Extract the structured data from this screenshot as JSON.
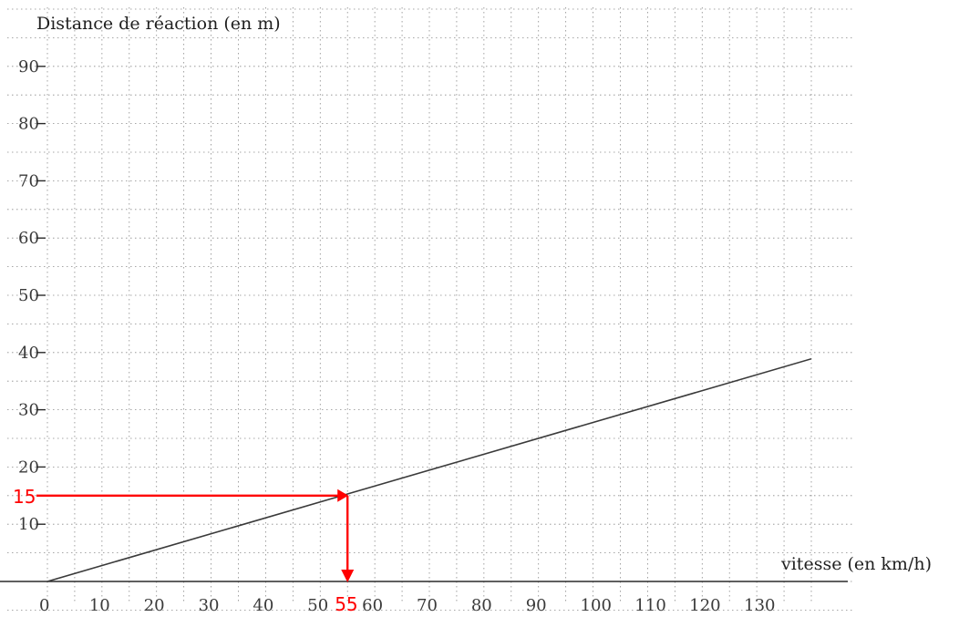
{
  "chart_data": {
    "type": "line",
    "ylabel": "Distance de réaction (en m)",
    "xlabel": "vitesse (en km/h)",
    "x_ticks": [
      "0",
      "10",
      "20",
      "30",
      "40",
      "50",
      "60",
      "70",
      "80",
      "90",
      "100",
      "110",
      "120",
      "130"
    ],
    "x_tick_values": [
      0,
      10,
      20,
      30,
      40,
      50,
      60,
      70,
      80,
      90,
      100,
      110,
      120,
      130
    ],
    "y_ticks": [
      "10",
      "20",
      "30",
      "40",
      "50",
      "60",
      "70",
      "80",
      "90"
    ],
    "y_tick_values": [
      10,
      20,
      30,
      40,
      50,
      60,
      70,
      80,
      90
    ],
    "xlim": [
      0,
      140
    ],
    "ylim": [
      0,
      100
    ],
    "grid": true,
    "series": [
      {
        "x": [
          0,
          140
        ],
        "y": [
          0,
          38.9
        ]
      }
    ],
    "annotations": {
      "color": "#ff0000",
      "reading": {
        "x": 55,
        "y": 15
      },
      "x_label": "55",
      "y_label": "15"
    }
  }
}
